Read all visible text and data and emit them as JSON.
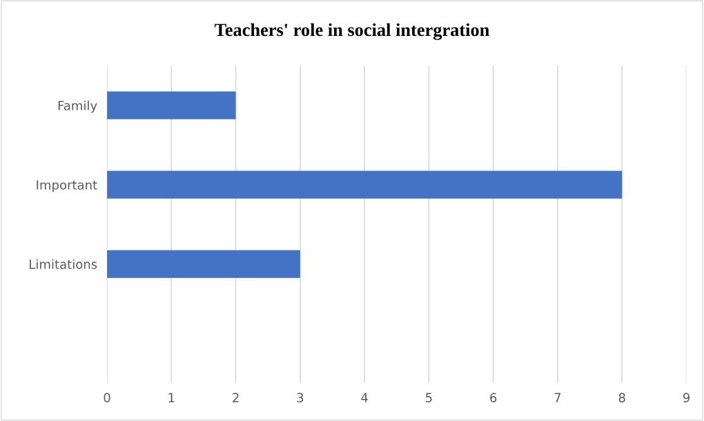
{
  "chart_data": {
    "type": "bar",
    "orientation": "horizontal",
    "title": "Teachers' role in social intergration",
    "categories": [
      "Family",
      "Important",
      "Limitations",
      null
    ],
    "values": [
      2,
      8,
      3,
      null
    ],
    "color": "#4472c4",
    "xlim": [
      0,
      9
    ],
    "xticks": [
      0,
      1,
      2,
      3,
      4,
      5,
      6,
      7,
      8,
      9
    ],
    "grid": "x",
    "legend": false
  }
}
